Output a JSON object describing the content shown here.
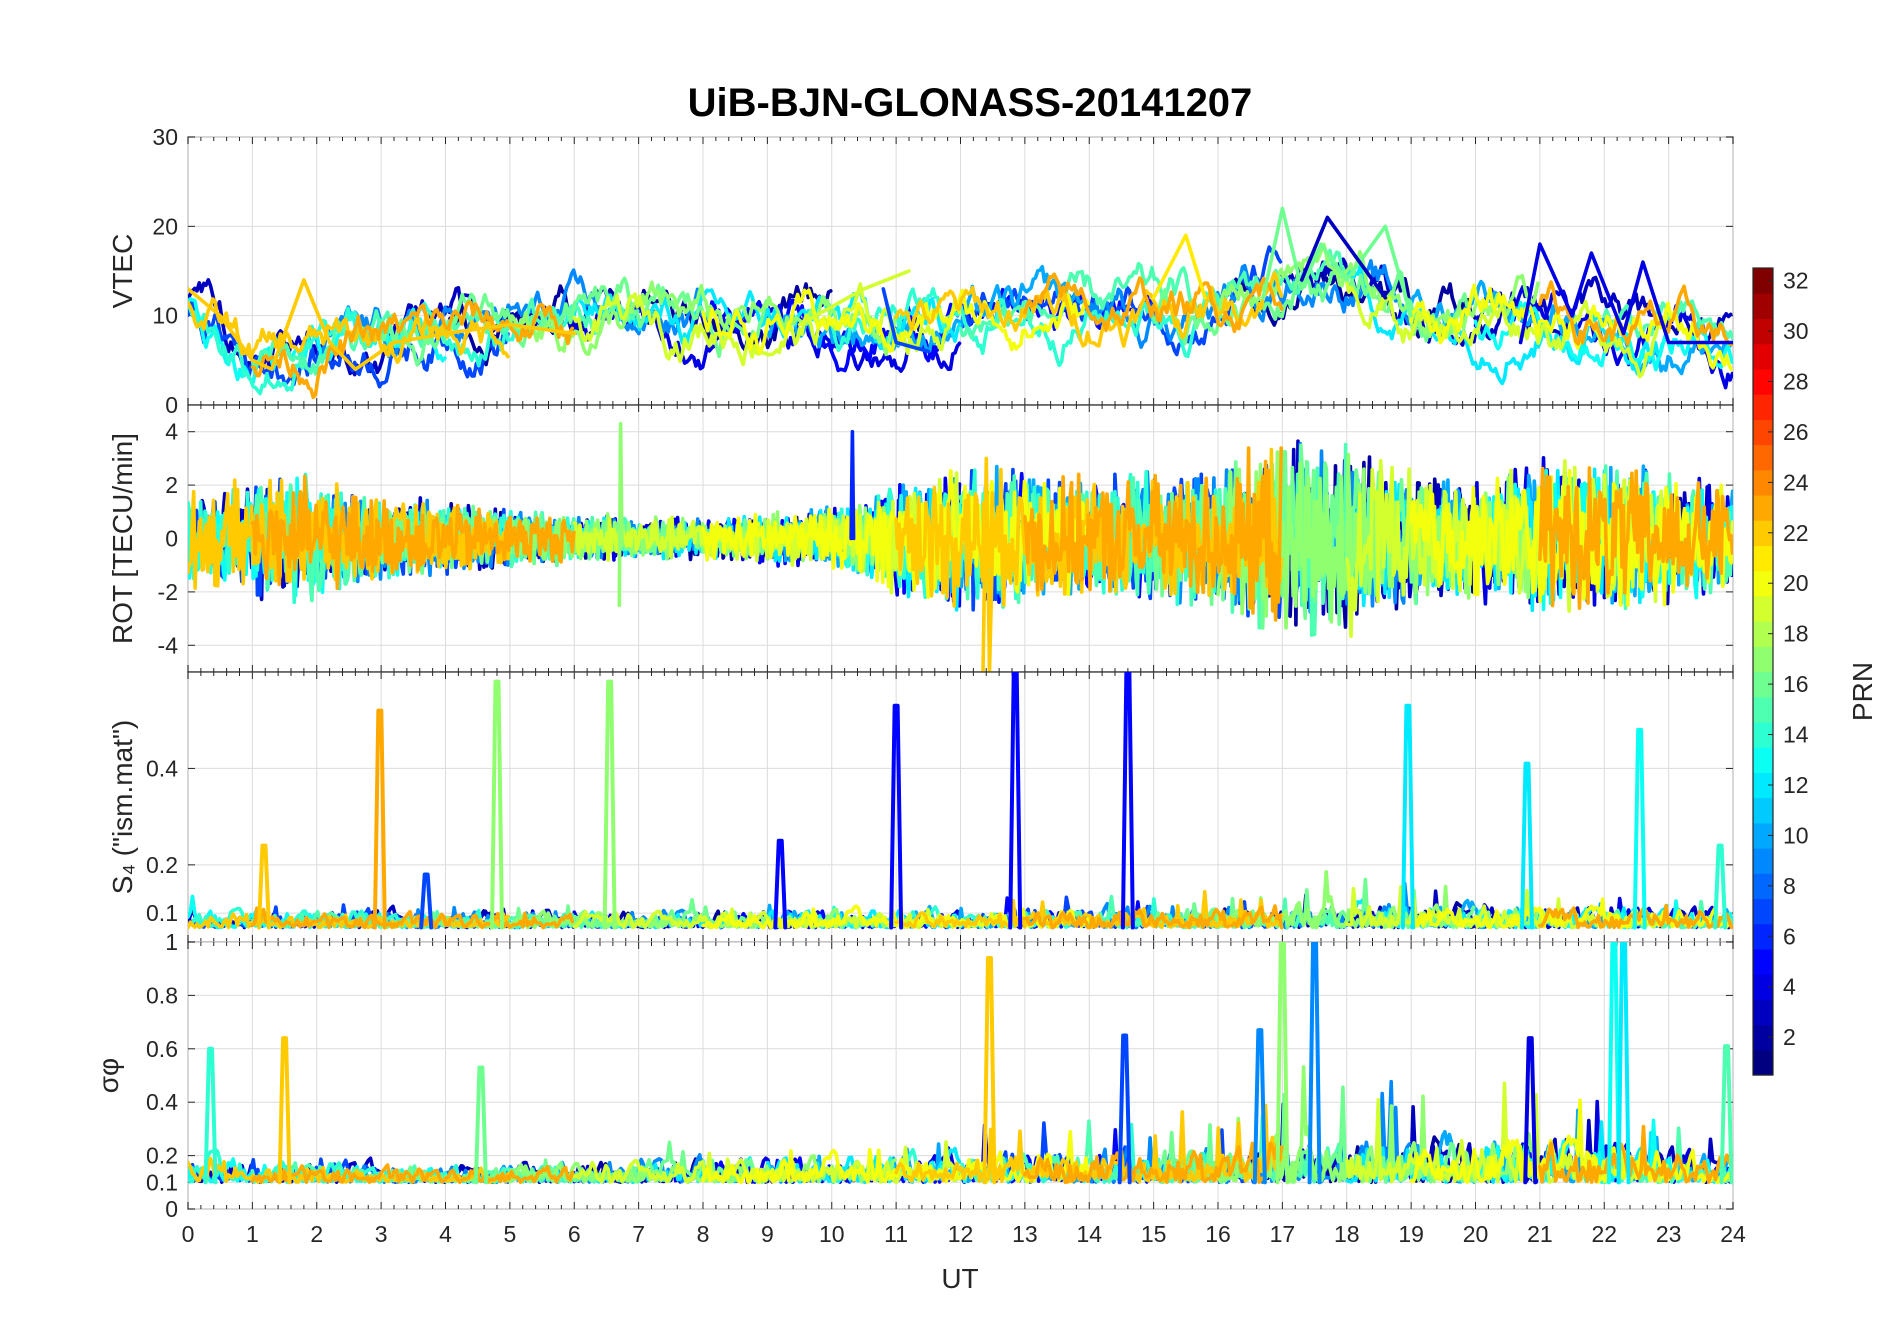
{
  "figure": {
    "title": "UiB-BJN-GLONASS-20141207"
  },
  "chart_data": {
    "type": "line",
    "title": "UiB-BJN-GLONASS-20141207",
    "xlabel": "UT",
    "xlim": [
      0,
      24
    ],
    "x_ticks": [
      0,
      1,
      2,
      3,
      4,
      5,
      6,
      7,
      8,
      9,
      10,
      11,
      12,
      13,
      14,
      15,
      16,
      17,
      18,
      19,
      20,
      21,
      22,
      23,
      24
    ],
    "grid": true,
    "colorbar": {
      "label": "PRN",
      "range": [
        1,
        32
      ],
      "ticks": [
        2,
        4,
        6,
        8,
        10,
        12,
        14,
        16,
        18,
        20,
        22,
        24,
        26,
        28,
        30,
        32
      ],
      "colormap": "jet",
      "colors": [
        "#00007f",
        "#0000ff",
        "#007fff",
        "#00ffff",
        "#7fff7f",
        "#ffff00",
        "#ff7f00",
        "#ff0000",
        "#7f0000"
      ]
    },
    "panels": [
      {
        "id": "vtec",
        "ylabel": "VTEC",
        "ylim": [
          0,
          30
        ],
        "y_ticks": [
          0,
          10,
          20,
          30
        ],
        "baseline": 8,
        "noise": 2.5,
        "envelope": [
          [
            0,
            11
          ],
          [
            1,
            5
          ],
          [
            2,
            6
          ],
          [
            3,
            7
          ],
          [
            5,
            9
          ],
          [
            7,
            9.5
          ],
          [
            9,
            9
          ],
          [
            11,
            9
          ],
          [
            13,
            10
          ],
          [
            15,
            11
          ],
          [
            16,
            11
          ],
          [
            17,
            15
          ],
          [
            18,
            15
          ],
          [
            19,
            10
          ],
          [
            21,
            10
          ],
          [
            22,
            9
          ],
          [
            24,
            7
          ]
        ],
        "highlights": [
          {
            "prn": 22,
            "points": [
              [
                0,
                13
              ],
              [
                0.5,
                10
              ],
              [
                1,
                5
              ],
              [
                1.3,
                4
              ],
              [
                1.8,
                14
              ],
              [
                2.2,
                7
              ],
              [
                2.6,
                4
              ],
              [
                3.2,
                7
              ],
              [
                4,
                8
              ],
              [
                5,
                9
              ],
              [
                6,
                8
              ]
            ]
          },
          {
            "prn": 21,
            "points": [
              [
                15,
                12
              ],
              [
                15.5,
                19
              ],
              [
                15.8,
                12
              ]
            ]
          },
          {
            "prn": 16,
            "points": [
              [
                16.7,
                12
              ],
              [
                17,
                22
              ],
              [
                17.3,
                13
              ],
              [
                17.6,
                18
              ],
              [
                18,
                14
              ],
              [
                18.6,
                20
              ],
              [
                19,
                10
              ]
            ]
          },
          {
            "prn": 3,
            "points": [
              [
                17.3,
                14
              ],
              [
                17.7,
                21
              ],
              [
                18.2,
                16
              ],
              [
                18.6,
                12
              ]
            ]
          },
          {
            "prn": 4,
            "points": [
              [
                20.7,
                7
              ],
              [
                21,
                18
              ],
              [
                21.5,
                10
              ],
              [
                21.8,
                17
              ],
              [
                22.3,
                8
              ],
              [
                22.6,
                16
              ],
              [
                23,
                7
              ],
              [
                24,
                7
              ]
            ]
          },
          {
            "prn": 19,
            "points": [
              [
                9.5,
                9
              ],
              [
                10.5,
                13
              ],
              [
                11.2,
                15
              ]
            ]
          },
          {
            "prn": 7,
            "points": [
              [
                10.8,
                13
              ],
              [
                11,
                7
              ],
              [
                11.5,
                6
              ]
            ]
          }
        ]
      },
      {
        "id": "rot",
        "ylabel": "ROT [TECU/min]",
        "ylim": [
          -5,
          5
        ],
        "y_ticks": [
          -4,
          -2,
          0,
          2,
          4
        ],
        "baseline": 0,
        "noise": 1.6,
        "envelope": [
          [
            0,
            1.6
          ],
          [
            1.5,
            2.2
          ],
          [
            3,
            1.4
          ],
          [
            5,
            1
          ],
          [
            6,
            0.8
          ],
          [
            8,
            0.7
          ],
          [
            9,
            0.9
          ],
          [
            10,
            1
          ],
          [
            11,
            1.8
          ],
          [
            12,
            2.4
          ],
          [
            14,
            2
          ],
          [
            15,
            2.2
          ],
          [
            16,
            2.4
          ],
          [
            17,
            3.4
          ],
          [
            18,
            3.2
          ],
          [
            19,
            2.2
          ],
          [
            20,
            2
          ],
          [
            21,
            2.6
          ],
          [
            22,
            2.6
          ],
          [
            23,
            2.2
          ],
          [
            24,
            1.8
          ]
        ],
        "highlights": [
          {
            "prn": 17,
            "points": [
              [
                6.7,
                -2.5
              ],
              [
                6.72,
                4.3
              ],
              [
                6.74,
                0
              ]
            ]
          },
          {
            "prn": 22,
            "points": [
              [
                12.35,
                -5
              ],
              [
                12.4,
                3
              ],
              [
                12.45,
                -5
              ],
              [
                12.5,
                0
              ]
            ]
          },
          {
            "prn": 6,
            "points": [
              [
                10.3,
                0
              ],
              [
                10.32,
                4
              ],
              [
                10.34,
                0
              ]
            ]
          }
        ]
      },
      {
        "id": "s4",
        "ylabel": "S₄ (\"ism.mat\")",
        "ylim": [
          0.04,
          0.6
        ],
        "y_ticks": [
          0.1,
          0.2,
          0.4
        ],
        "baseline": 0.07,
        "noise": 0.025,
        "envelope": [
          [
            0,
            0.09
          ],
          [
            3,
            0.08
          ],
          [
            6,
            0.08
          ],
          [
            9,
            0.08
          ],
          [
            12,
            0.085
          ],
          [
            16,
            0.09
          ],
          [
            18,
            0.1
          ],
          [
            21,
            0.09
          ],
          [
            24,
            0.085
          ]
        ],
        "spikes": [
          {
            "x": 1.18,
            "value": 0.24,
            "prn": 22
          },
          {
            "x": 2.98,
            "value": 0.52,
            "prn": 23
          },
          {
            "x": 3.7,
            "value": 0.18,
            "prn": 7
          },
          {
            "x": 4.8,
            "value": 0.58,
            "prn": 17
          },
          {
            "x": 6.55,
            "value": 0.58,
            "prn": 17
          },
          {
            "x": 9.2,
            "value": 0.25,
            "prn": 5
          },
          {
            "x": 11.0,
            "value": 0.53,
            "prn": 5
          },
          {
            "x": 12.85,
            "value": 0.6,
            "prn": 5
          },
          {
            "x": 14.6,
            "value": 0.6,
            "prn": 5
          },
          {
            "x": 18.95,
            "value": 0.53,
            "prn": 12
          },
          {
            "x": 20.8,
            "value": 0.41,
            "prn": 12
          },
          {
            "x": 22.55,
            "value": 0.48,
            "prn": 13
          },
          {
            "x": 23.8,
            "value": 0.24,
            "prn": 14
          }
        ]
      },
      {
        "id": "sigma",
        "ylabel": "σφ",
        "ylim": [
          0,
          1
        ],
        "y_ticks": [
          0,
          0.1,
          0.2,
          0.4,
          0.6,
          0.8,
          1
        ],
        "baseline": 0.1,
        "noise": 0.06,
        "envelope": [
          [
            0,
            0.2
          ],
          [
            1,
            0.13
          ],
          [
            2,
            0.12
          ],
          [
            4,
            0.1
          ],
          [
            6,
            0.12
          ],
          [
            8,
            0.13
          ],
          [
            10,
            0.14
          ],
          [
            12,
            0.16
          ],
          [
            14,
            0.17
          ],
          [
            16,
            0.18
          ],
          [
            17,
            0.22
          ],
          [
            19,
            0.2
          ],
          [
            21,
            0.22
          ],
          [
            22,
            0.2
          ],
          [
            24,
            0.14
          ]
        ],
        "spikes": [
          {
            "x": 0.35,
            "value": 0.6,
            "prn": 14
          },
          {
            "x": 1.5,
            "value": 0.64,
            "prn": 22
          },
          {
            "x": 4.55,
            "value": 0.53,
            "prn": 16
          },
          {
            "x": 12.45,
            "value": 0.94,
            "prn": 22
          },
          {
            "x": 14.55,
            "value": 0.65,
            "prn": 7
          },
          {
            "x": 16.65,
            "value": 0.67,
            "prn": 9
          },
          {
            "x": 17.0,
            "value": 1.0,
            "prn": 17
          },
          {
            "x": 17.5,
            "value": 1.0,
            "prn": 9
          },
          {
            "x": 20.85,
            "value": 0.64,
            "prn": 4
          },
          {
            "x": 22.15,
            "value": 1.0,
            "prn": 13
          },
          {
            "x": 22.3,
            "value": 1.0,
            "prn": 12
          },
          {
            "x": 23.9,
            "value": 0.61,
            "prn": 15
          }
        ]
      }
    ],
    "satellites": [
      {
        "prn": 2,
        "segments": [
          [
            4,
            10
          ],
          [
            16,
            20
          ]
        ]
      },
      {
        "prn": 3,
        "segments": [
          [
            0,
            6
          ],
          [
            17,
            24
          ]
        ]
      },
      {
        "prn": 4,
        "segments": [
          [
            6,
            12
          ],
          [
            20,
            24
          ]
        ]
      },
      {
        "prn": 5,
        "segments": [
          [
            8,
            15
          ]
        ]
      },
      {
        "prn": 7,
        "segments": [
          [
            0,
            5
          ],
          [
            12,
            17
          ]
        ]
      },
      {
        "prn": 9,
        "segments": [
          [
            2,
            8
          ],
          [
            14,
            19
          ]
        ]
      },
      {
        "prn": 10,
        "segments": [
          [
            9,
            14
          ],
          [
            19,
            24
          ]
        ]
      },
      {
        "prn": 12,
        "segments": [
          [
            6,
            12
          ],
          [
            18,
            23
          ]
        ]
      },
      {
        "prn": 13,
        "segments": [
          [
            0,
            4
          ],
          [
            20,
            24
          ]
        ]
      },
      {
        "prn": 14,
        "segments": [
          [
            0,
            6
          ],
          [
            10,
            16
          ]
        ]
      },
      {
        "prn": 15,
        "segments": [
          [
            1,
            7
          ],
          [
            12,
            18
          ],
          [
            22,
            24
          ]
        ]
      },
      {
        "prn": 16,
        "segments": [
          [
            3,
            9
          ],
          [
            15,
            20
          ]
        ]
      },
      {
        "prn": 17,
        "segments": [
          [
            5,
            11
          ],
          [
            16,
            21
          ]
        ]
      },
      {
        "prn": 19,
        "segments": [
          [
            6,
            12
          ],
          [
            18,
            23
          ]
        ]
      },
      {
        "prn": 20,
        "segments": [
          [
            8,
            14
          ],
          [
            19,
            24
          ]
        ]
      },
      {
        "prn": 22,
        "segments": [
          [
            0,
            5
          ],
          [
            11,
            17
          ]
        ]
      },
      {
        "prn": 23,
        "segments": [
          [
            1,
            6
          ],
          [
            13,
            17
          ],
          [
            21,
            24
          ]
        ]
      }
    ]
  }
}
